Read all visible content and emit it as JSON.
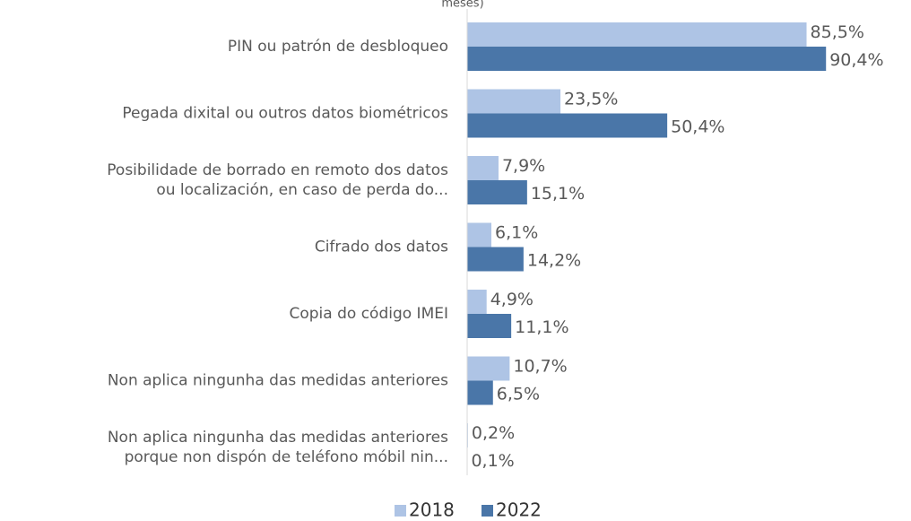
{
  "chart_data": {
    "type": "bar",
    "orientation": "horizontal",
    "title": "meses)",
    "categories": [
      "PIN ou patrón de desbloqueo",
      "Pegada dixital ou outros datos biométricos",
      "Posibilidade de borrado en remoto dos datos\nou localización, en caso de perda do...",
      "Cifrado dos datos",
      "Copia do código IMEI",
      "Non aplica ningunha das medidas anteriores",
      "Non aplica ningunha das medidas anteriores\nporque non dispón de teléfono móbil nin..."
    ],
    "series": [
      {
        "name": "2018",
        "color": "#aec4e5",
        "values": [
          85.5,
          23.5,
          7.9,
          6.1,
          4.9,
          10.7,
          0.2
        ],
        "value_labels": [
          "85,5%",
          "23,5%",
          "7,9%",
          "6,1%",
          "4,9%",
          "10,7%",
          "0,2%"
        ]
      },
      {
        "name": "2022",
        "color": "#4a76a8",
        "values": [
          90.4,
          50.4,
          15.1,
          14.2,
          11.1,
          6.5,
          0.1
        ],
        "value_labels": [
          "90,4%",
          "50,4%",
          "15,1%",
          "14,2%",
          "11,1%",
          "6,5%",
          "0,1%"
        ]
      }
    ],
    "xlim": [
      0,
      110
    ],
    "legend": "bottom"
  }
}
